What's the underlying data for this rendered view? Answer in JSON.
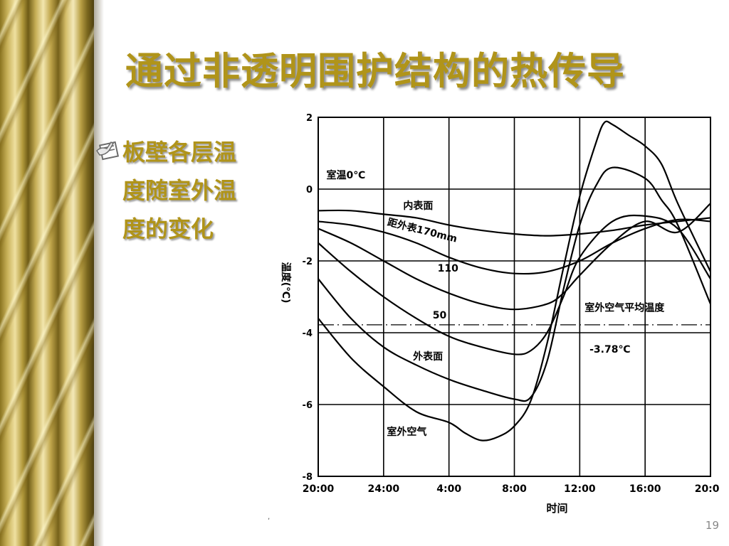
{
  "slide": {
    "title": "通过非透明围护结构的热传导",
    "bullet_lines": [
      "板壁各层温",
      "度随室外温",
      "度的变化"
    ],
    "bullet_icon": "hand-writing-icon",
    "page_number": "19",
    "stray_mark": ","
  },
  "chart_data": {
    "type": "line",
    "title": "",
    "xlabel": "时间",
    "ylabel": "温度(℃)",
    "ylim": [
      -8,
      2
    ],
    "xlim": [
      20,
      44
    ],
    "x_ticks": [
      20,
      24,
      28,
      32,
      36,
      40,
      44
    ],
    "x_tick_labels": [
      "20:00",
      "24:00",
      "4:00",
      "8:00",
      "12:00",
      "16:00",
      "20:00"
    ],
    "y_ticks": [
      2,
      0,
      -2,
      -4,
      -6,
      -8
    ],
    "y_tick_labels": [
      "2",
      "0",
      "-2",
      "-4",
      "-6",
      "-8"
    ],
    "grid": true,
    "series": [
      {
        "name": "内表面",
        "x": [
          20,
          22,
          24,
          26,
          28,
          30,
          32,
          34,
          36,
          38,
          40,
          42,
          44
        ],
        "y": [
          -0.6,
          -0.6,
          -0.7,
          -0.8,
          -1.0,
          -1.15,
          -1.25,
          -1.3,
          -1.25,
          -1.15,
          -1.0,
          -0.9,
          -0.8
        ]
      },
      {
        "name": "距外表170mm",
        "x": [
          20,
          22,
          24,
          26,
          28,
          30,
          32,
          34,
          36,
          38,
          40,
          42,
          44
        ],
        "y": [
          -0.9,
          -1.0,
          -1.2,
          -1.5,
          -1.9,
          -2.2,
          -2.35,
          -2.3,
          -2.0,
          -1.5,
          -1.1,
          -0.85,
          -0.9
        ]
      },
      {
        "name": "110",
        "x": [
          20,
          22,
          24,
          26,
          28,
          30,
          32,
          34,
          35,
          36,
          38,
          40,
          42,
          44
        ],
        "y": [
          -1.1,
          -1.5,
          -2.0,
          -2.5,
          -2.9,
          -3.2,
          -3.35,
          -3.2,
          -2.9,
          -2.4,
          -1.5,
          -0.9,
          -1.2,
          -0.4
        ]
      },
      {
        "name": "50",
        "x": [
          20,
          22,
          24,
          26,
          28,
          30,
          32,
          33,
          34,
          35,
          36,
          38,
          40,
          42,
          44
        ],
        "y": [
          -1.5,
          -2.3,
          -3.0,
          -3.6,
          -4.1,
          -4.4,
          -4.6,
          -4.5,
          -4.0,
          -3.0,
          -1.9,
          -0.9,
          -0.75,
          -1.1,
          -2.5
        ]
      },
      {
        "name": "外表面",
        "x": [
          20,
          22,
          24,
          26,
          28,
          30,
          32,
          33,
          34,
          35,
          36,
          37,
          38,
          40,
          41,
          42,
          44
        ],
        "y": [
          -2.5,
          -3.6,
          -4.4,
          -4.9,
          -5.3,
          -5.6,
          -5.85,
          -5.8,
          -4.8,
          -2.8,
          -1.0,
          0.1,
          0.6,
          0.3,
          -0.3,
          -1.0,
          -3.2
        ]
      },
      {
        "name": "室外空气",
        "x": [
          20,
          22,
          24,
          26,
          28,
          29,
          30,
          31,
          32,
          33,
          34,
          35,
          36,
          37,
          37.5,
          38,
          39,
          40,
          41,
          42,
          44
        ],
        "y": [
          -3.6,
          -4.7,
          -5.5,
          -6.2,
          -6.5,
          -6.8,
          -7.0,
          -6.9,
          -6.6,
          -5.9,
          -4.3,
          -2.2,
          -0.2,
          1.3,
          1.85,
          1.8,
          1.5,
          1.2,
          0.7,
          -0.4,
          -2.3
        ]
      }
    ],
    "reference_line": {
      "label": "室外空气平均温度",
      "value_label": "-3.78℃",
      "y": -3.78
    },
    "annotations": [
      "室温0℃"
    ]
  }
}
